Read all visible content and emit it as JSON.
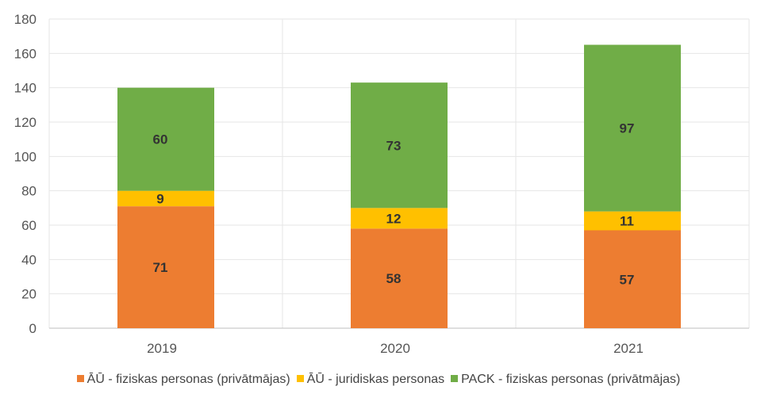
{
  "chart_data": {
    "type": "bar",
    "stacked": true,
    "categories": [
      "2019",
      "2020",
      "2021"
    ],
    "series": [
      {
        "name": "ĀŪ - fiziskas personas (privātmājas)",
        "values": [
          71,
          58,
          57
        ],
        "color": "#ED7D31"
      },
      {
        "name": "ĀŪ - juridiskas personas",
        "values": [
          9,
          12,
          11
        ],
        "color": "#FFC000"
      },
      {
        "name": "PACK - fiziskas personas (privātmājas)",
        "values": [
          60,
          73,
          97
        ],
        "color": "#70AD47"
      }
    ],
    "ylim": [
      0,
      180
    ],
    "yticks": [
      "0",
      "20",
      "40",
      "60",
      "80",
      "100",
      "120",
      "140",
      "160",
      "180"
    ],
    "grid": true,
    "legend_position": "bottom"
  }
}
